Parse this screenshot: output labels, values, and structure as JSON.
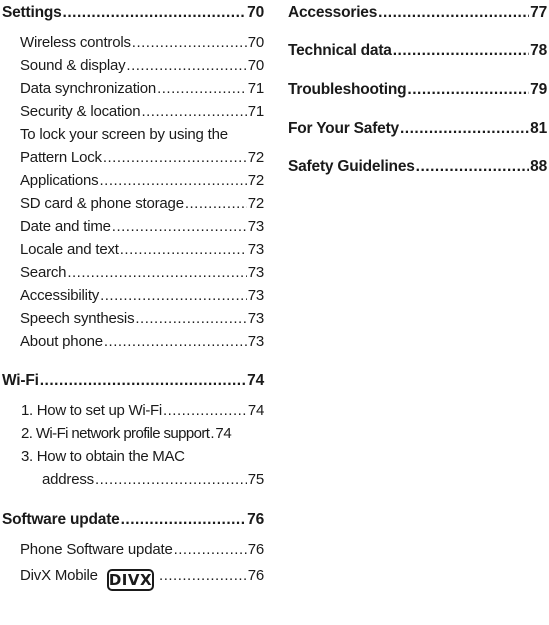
{
  "left_column": {
    "settings": {
      "title": "Settings",
      "page": "70"
    },
    "settings_items": [
      {
        "title": "Wireless controls",
        "page": "70"
      },
      {
        "title": "Sound & display",
        "page": "70"
      },
      {
        "title": "Data synchronization",
        "page": "71"
      },
      {
        "title": "Security & location",
        "page": "71"
      }
    ],
    "pattern_lock": {
      "line1": "To lock your screen by using the",
      "line2": "Pattern Lock",
      "page": "72"
    },
    "settings_items_2": [
      {
        "title": "Applications",
        "page": "72"
      },
      {
        "title": "SD card & phone storage",
        "page": "72"
      },
      {
        "title": "Date and time",
        "page": "73"
      },
      {
        "title": "Locale and text",
        "page": "73"
      },
      {
        "title": "Search",
        "page": "73"
      },
      {
        "title": "Accessibility",
        "page": "73"
      },
      {
        "title": "Speech synthesis",
        "page": "73"
      },
      {
        "title": "About phone",
        "page": "73"
      }
    ],
    "wifi": {
      "title": "Wi-Fi",
      "page": "74"
    },
    "wifi_items": [
      {
        "title": "1. How to set up Wi-Fi",
        "page": "74"
      },
      {
        "title": "2. Wi-Fi network profile support",
        "page": "74"
      }
    ],
    "mac": {
      "line1": "3. How to obtain the MAC",
      "line2": "address",
      "page": "75"
    },
    "software": {
      "title": "Software update",
      "page": "76"
    },
    "software_items": [
      {
        "title": "Phone Software update",
        "page": "76"
      }
    ],
    "divx": {
      "title": "DivX Mobile",
      "logo_text": "DIVX",
      "page": "76"
    }
  },
  "right_column": [
    {
      "title": "Accessories",
      "page": "77"
    },
    {
      "title": "Technical data",
      "page": "78"
    },
    {
      "title": "Troubleshooting",
      "page": "79"
    },
    {
      "title": "For Your Safety",
      "page": "81"
    },
    {
      "title": "Safety Guidelines",
      "page": "88"
    }
  ]
}
